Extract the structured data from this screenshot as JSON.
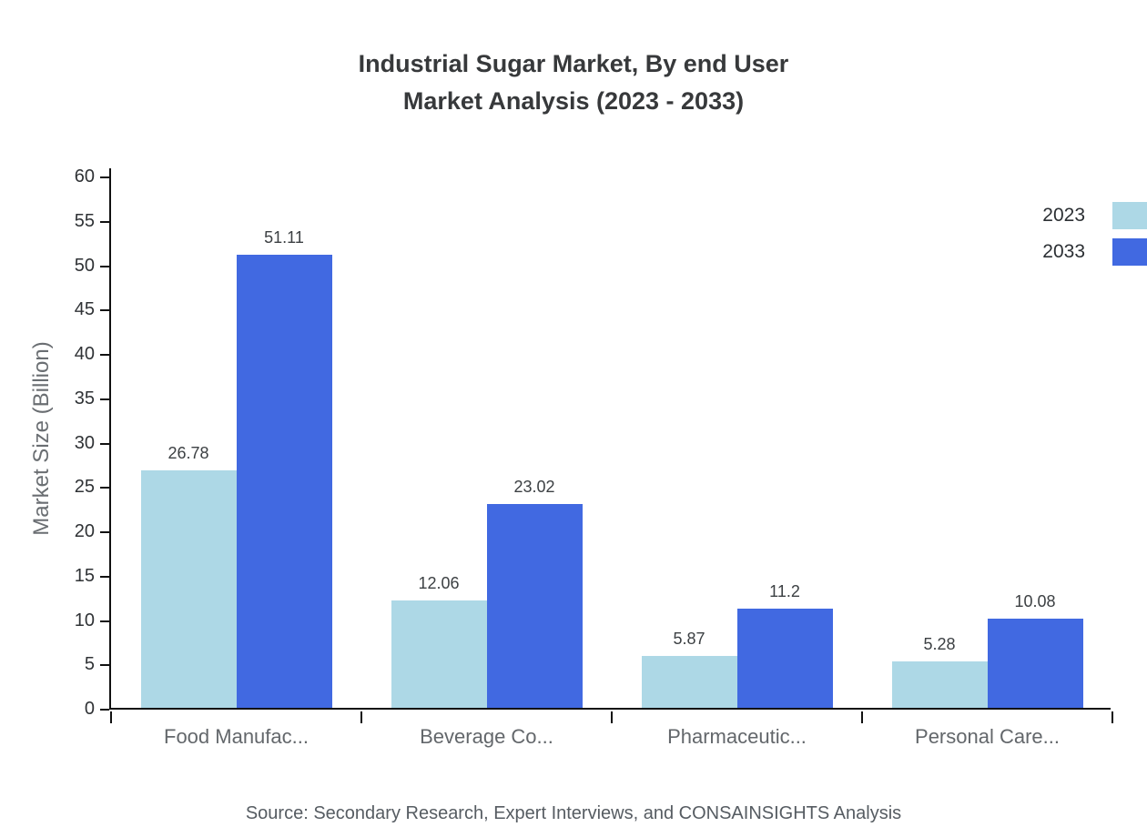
{
  "title": {
    "line1": "Industrial Sugar Market, By end User",
    "line2": "Market Analysis (2023 - 2033)"
  },
  "source": "Source: Secondary Research, Expert Interviews, and CONSAINSIGHTS Analysis",
  "chart_data": {
    "type": "bar",
    "title": "Industrial Sugar Market, By end User Market Analysis (2023 - 2033)",
    "categories": [
      "Food Manufac...",
      "Beverage Co...",
      "Pharmaceutic...",
      "Personal Care..."
    ],
    "series": [
      {
        "name": "2023",
        "color": "#add8e6",
        "values": [
          26.78,
          12.06,
          5.87,
          5.28
        ]
      },
      {
        "name": "2033",
        "color": "#4169e1",
        "values": [
          51.11,
          23.02,
          11.2,
          10.08
        ]
      }
    ],
    "value_labels": [
      [
        "26.78",
        "12.06",
        "5.87",
        "5.28"
      ],
      [
        "51.11",
        "23.02",
        "11.2",
        "10.08"
      ]
    ],
    "xlabel": "",
    "ylabel": "Market Size (Billion)",
    "ylim": [
      0,
      60
    ],
    "ytick_step": 5,
    "yticks": [
      0,
      5,
      10,
      15,
      20,
      25,
      30,
      35,
      40,
      45,
      50,
      55,
      60
    ],
    "grid": false,
    "legend_position": "top-right"
  }
}
